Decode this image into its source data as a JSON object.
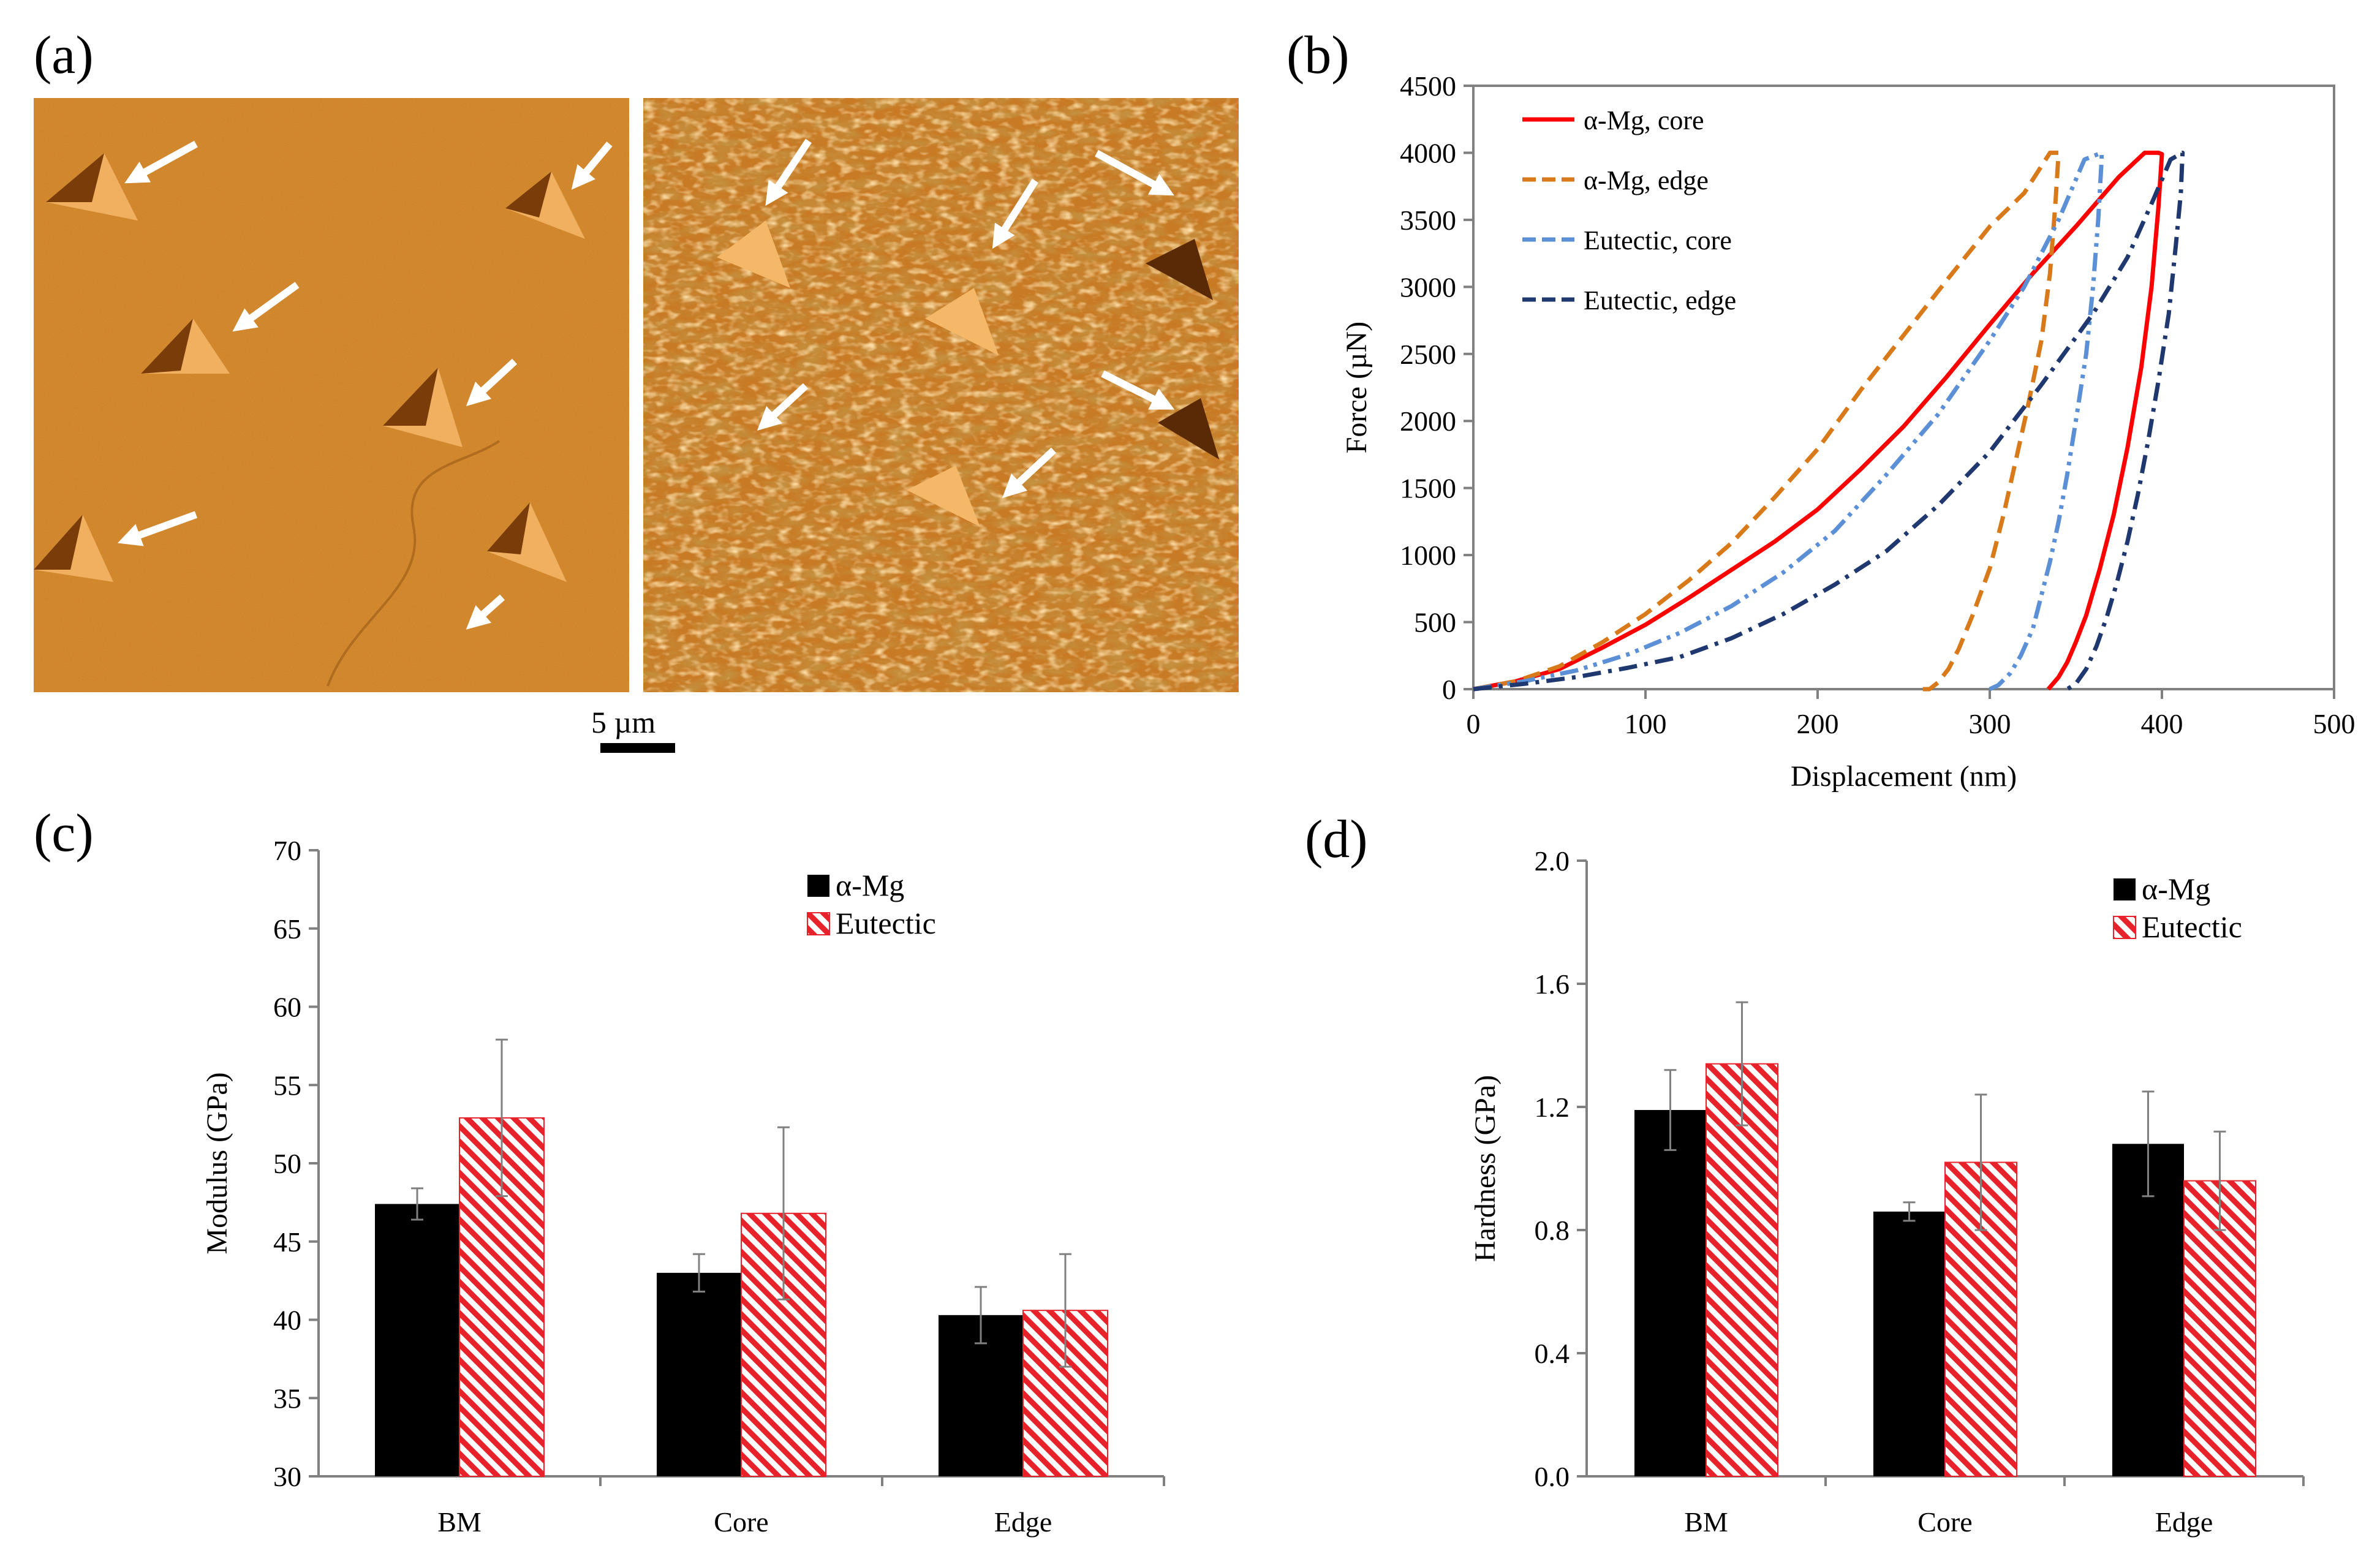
{
  "panel_labels": {
    "a": "(a)",
    "b": "(b)",
    "c": "(c)",
    "d": "(d)"
  },
  "scale_bar": {
    "label": "5 µm"
  },
  "colors": {
    "afm_base": "#c8791e",
    "afm_light": "#e0a04a",
    "afm_dark": "#8a4a10",
    "alpha_mg": "#000000",
    "eutectic": "#e8222a",
    "core_a": "#ff0000",
    "edge_a": "#d97a1a",
    "core_e": "#5b8fd6",
    "edge_e": "#1f3870",
    "axis": "#808080"
  },
  "chart_data": [
    {
      "id": "b",
      "type": "line",
      "title": "",
      "xlabel": "Displacement (nm)",
      "ylabel": "Force (µN)",
      "xlim": [
        0,
        500
      ],
      "ylim": [
        0,
        4500
      ],
      "xticks": [
        0,
        100,
        200,
        300,
        400,
        500
      ],
      "yticks": [
        0,
        500,
        1000,
        1500,
        2000,
        2500,
        3000,
        3500,
        4000,
        4500
      ],
      "legend_position": "top-left",
      "series": [
        {
          "name": "α-Mg, core",
          "color": "#ff0000",
          "dash": "solid",
          "x": [
            0,
            25,
            50,
            75,
            100,
            125,
            150,
            175,
            200,
            225,
            250,
            275,
            300,
            325,
            350,
            375,
            390,
            398,
            400,
            398,
            394,
            388,
            380,
            372,
            364,
            356,
            350,
            345,
            340,
            336,
            334,
            334
          ],
          "y": [
            0,
            60,
            150,
            310,
            480,
            680,
            890,
            1100,
            1340,
            1640,
            1960,
            2330,
            2720,
            3100,
            3450,
            3820,
            4000,
            4000,
            3990,
            3600,
            3000,
            2400,
            1800,
            1300,
            900,
            550,
            350,
            200,
            90,
            30,
            0,
            0
          ]
        },
        {
          "name": "α-Mg, edge",
          "color": "#d97a1a",
          "dash": "dashed",
          "x": [
            0,
            25,
            50,
            75,
            100,
            125,
            150,
            175,
            200,
            225,
            250,
            275,
            300,
            320,
            335,
            340,
            338,
            335,
            330,
            322,
            315,
            308,
            300,
            290,
            282,
            276,
            270,
            265,
            262,
            260
          ],
          "y": [
            0,
            60,
            170,
            350,
            560,
            810,
            1090,
            1430,
            1790,
            2230,
            2640,
            3050,
            3450,
            3700,
            4000,
            4000,
            3600,
            3100,
            2600,
            2100,
            1700,
            1300,
            900,
            550,
            300,
            150,
            50,
            0,
            0,
            0
          ]
        },
        {
          "name": "Eutectic, core",
          "color": "#5b8fd6",
          "dash": "dashdotdot",
          "x": [
            0,
            30,
            60,
            90,
            120,
            150,
            180,
            210,
            240,
            270,
            300,
            320,
            340,
            355,
            365,
            365,
            363,
            360,
            356,
            350,
            345,
            340,
            335,
            330,
            325,
            318,
            312,
            305,
            300
          ],
          "y": [
            0,
            60,
            140,
            260,
            420,
            620,
            870,
            1180,
            1600,
            2050,
            2600,
            3000,
            3500,
            3950,
            4000,
            3950,
            3500,
            3000,
            2500,
            2000,
            1600,
            1250,
            950,
            700,
            450,
            250,
            120,
            30,
            0
          ]
        },
        {
          "name": "Eutectic, edge",
          "color": "#1f3870",
          "dash": "dashdot",
          "x": [
            0,
            30,
            60,
            90,
            120,
            150,
            180,
            210,
            240,
            270,
            300,
            330,
            360,
            380,
            395,
            405,
            412,
            411,
            408,
            404,
            398,
            392,
            386,
            380,
            374,
            368,
            362,
            356,
            350,
            345
          ],
          "y": [
            0,
            40,
            90,
            160,
            240,
            380,
            560,
            780,
            1030,
            1370,
            1770,
            2270,
            2800,
            3220,
            3650,
            3950,
            4000,
            3700,
            3300,
            2800,
            2300,
            1850,
            1450,
            1100,
            800,
            540,
            320,
            150,
            40,
            0
          ]
        }
      ]
    },
    {
      "id": "c",
      "type": "bar",
      "title": "",
      "xlabel": "",
      "ylabel": "Modulus (GPa)",
      "ylim": [
        30,
        70
      ],
      "yticks": [
        30,
        35,
        40,
        45,
        50,
        55,
        60,
        65,
        70
      ],
      "categories": [
        "BM",
        "Core",
        "Edge"
      ],
      "legend_position": "top-right",
      "series": [
        {
          "name": "α-Mg",
          "values": [
            47.4,
            43.0,
            40.3
          ],
          "errors": [
            1.0,
            1.2,
            1.8
          ]
        },
        {
          "name": "Eutectic",
          "values": [
            52.9,
            46.8,
            40.6
          ],
          "errors": [
            5.0,
            5.5,
            3.6
          ]
        }
      ]
    },
    {
      "id": "d",
      "type": "bar",
      "title": "",
      "xlabel": "",
      "ylabel": "Hardness (GPa)",
      "ylim": [
        0,
        2.0
      ],
      "yticks": [
        "0.0",
        "0.4",
        "0.8",
        "1.2",
        "1.6",
        "2.0"
      ],
      "categories": [
        "BM",
        "Core",
        "Edge"
      ],
      "legend_position": "top-right",
      "series": [
        {
          "name": "α-Mg",
          "values": [
            1.19,
            0.86,
            1.08
          ],
          "errors": [
            0.13,
            0.03,
            0.17
          ]
        },
        {
          "name": "Eutectic",
          "values": [
            1.34,
            1.02,
            0.96
          ],
          "errors": [
            0.2,
            0.22,
            0.16
          ]
        }
      ]
    }
  ]
}
